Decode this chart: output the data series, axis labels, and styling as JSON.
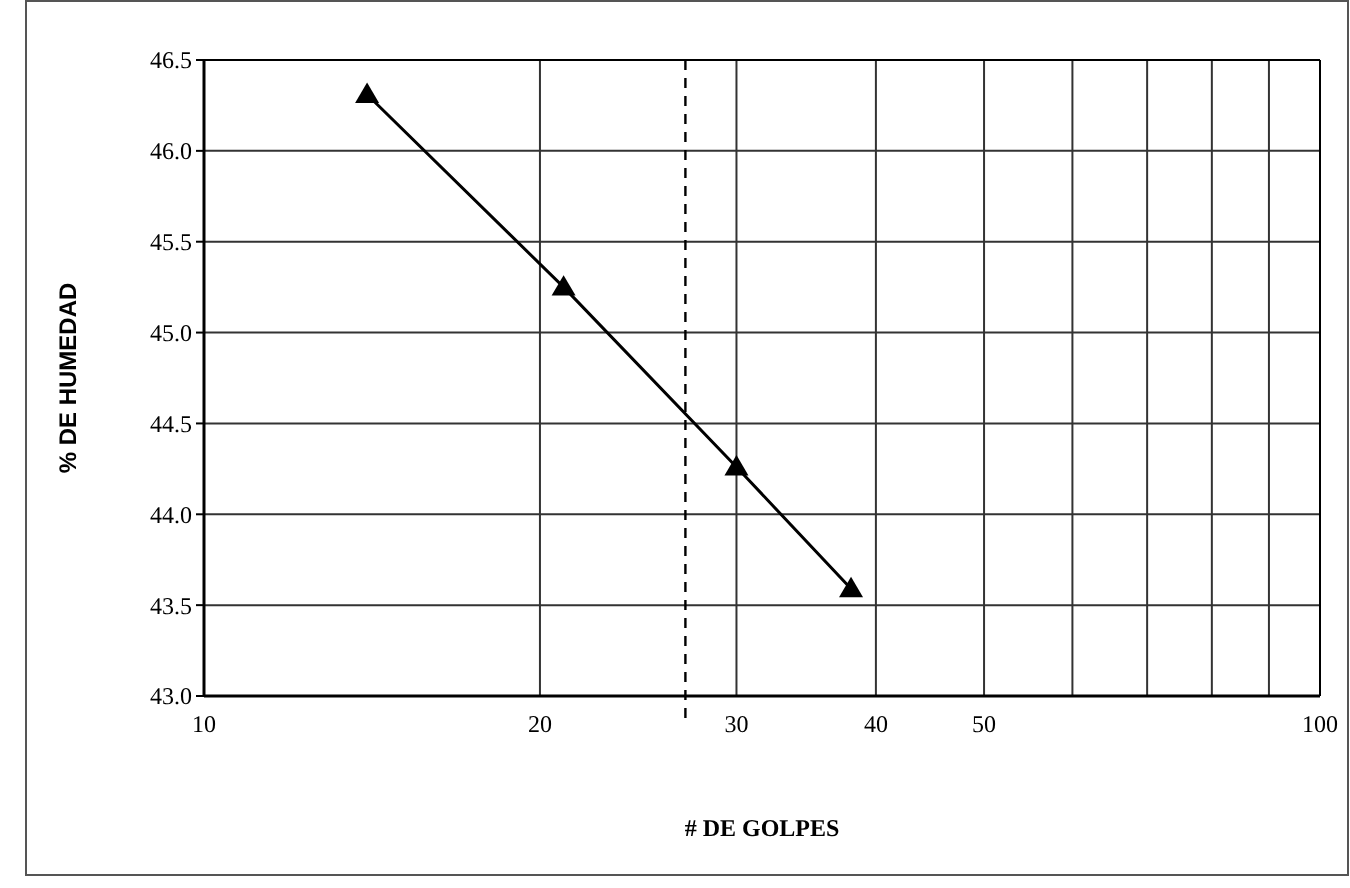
{
  "chart_data": {
    "type": "line",
    "xlabel": "# DE GOLPES",
    "ylabel": "% DE HUMEDAD",
    "x": [
      14,
      21,
      30,
      38
    ],
    "series": [
      {
        "color": "#000000",
        "values": [
          46.31,
          45.25,
          44.26,
          43.59
        ]
      }
    ],
    "marker": "triangle",
    "line_style": "solid",
    "log": "x",
    "grid": true,
    "xlim": [
      10,
      100
    ],
    "xticks": [
      10,
      20,
      30,
      40,
      50,
      {
        "value": 60,
        "label": null
      },
      {
        "value": 70,
        "label": null
      },
      {
        "value": 80,
        "label": null
      },
      {
        "value": 90,
        "label": null
      },
      100
    ],
    "ylim": [
      43,
      46.5
    ],
    "yticks": [
      {
        "value": 43,
        "label": "43.0"
      },
      {
        "value": 43.5,
        "label": "43.5"
      },
      {
        "value": 44,
        "label": "44.0"
      },
      {
        "value": 44.5,
        "label": "44.5"
      },
      {
        "value": 45,
        "label": "45.0"
      },
      {
        "value": 45.5,
        "label": "45.5"
      },
      {
        "value": 46,
        "label": "46.0"
      },
      {
        "value": 46.5,
        "label": "46.5"
      }
    ],
    "ref_lines": [
      {
        "axis": "x",
        "value": 27,
        "label": null,
        "color": "#000000",
        "line_style": "dashed"
      }
    ]
  }
}
